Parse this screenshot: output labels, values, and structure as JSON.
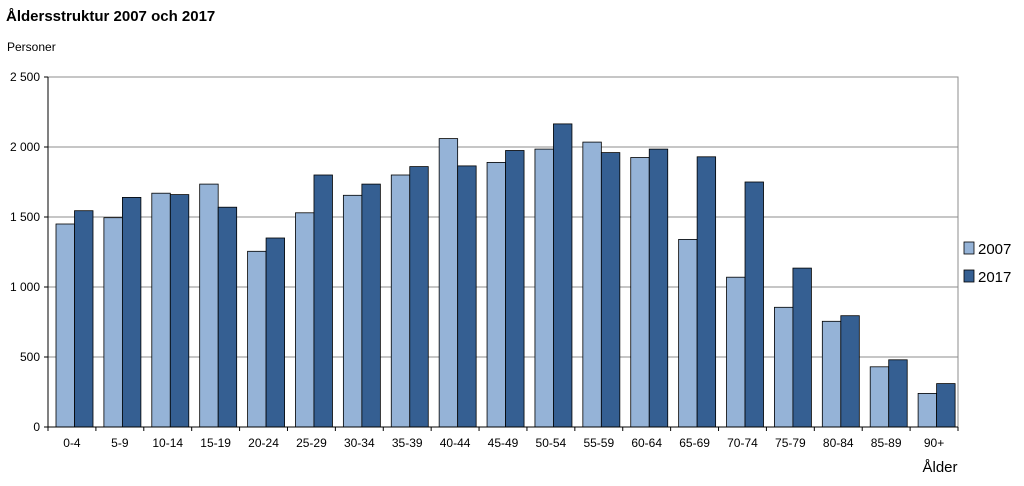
{
  "chart_data": {
    "type": "bar",
    "title": "Åldersstruktur 2007 och 2017",
    "ylabel": "Personer",
    "xlabel": "Ålder",
    "ylim": [
      0,
      2500
    ],
    "yticks": [
      0,
      500,
      1000,
      1500,
      2000,
      2500
    ],
    "ytick_labels": [
      "0",
      "500",
      "1 000",
      "1 500",
      "2 000",
      "2 500"
    ],
    "grid": true,
    "legend_position": "right",
    "categories": [
      "0-4",
      "5-9",
      "10-14",
      "15-19",
      "20-24",
      "25-29",
      "30-34",
      "35-39",
      "40-44",
      "45-49",
      "50-54",
      "55-59",
      "60-64",
      "65-69",
      "70-74",
      "75-79",
      "80-84",
      "85-89",
      "90+"
    ],
    "series": [
      {
        "name": "2007",
        "color": "#95b3d7",
        "values": [
          1450,
          1495,
          1670,
          1735,
          1255,
          1530,
          1655,
          1800,
          2060,
          1890,
          1985,
          2035,
          1925,
          1340,
          1070,
          855,
          755,
          430,
          240
        ]
      },
      {
        "name": "2017",
        "color": "#355f92",
        "values": [
          1545,
          1640,
          1660,
          1570,
          1350,
          1800,
          1735,
          1860,
          1865,
          1975,
          2165,
          1960,
          1985,
          1930,
          1750,
          1135,
          795,
          480,
          310
        ]
      }
    ]
  }
}
